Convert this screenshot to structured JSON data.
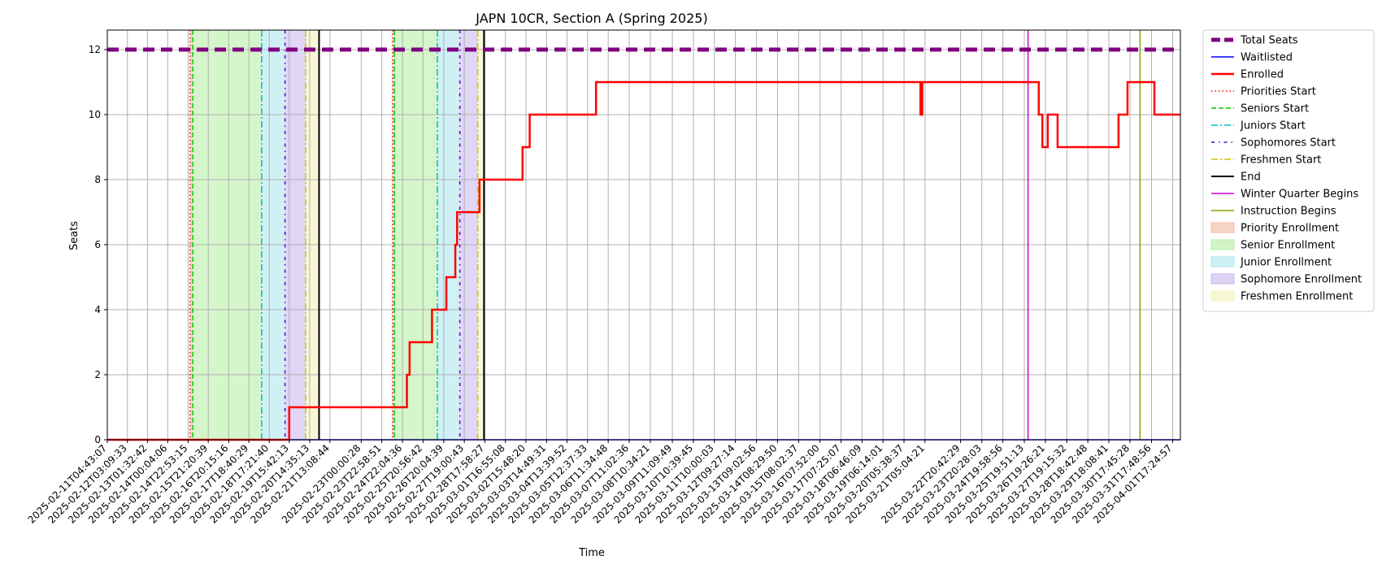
{
  "chart_data": {
    "type": "line",
    "title": "JAPN 10CR, Section A (Spring 2025)",
    "xlabel": "Time",
    "ylabel": "Seats",
    "ylim": [
      0,
      12.6
    ],
    "yticks": [
      0,
      2,
      4,
      6,
      8,
      10,
      12
    ],
    "xlim": [
      "2025-02-11T04:43:07",
      "2025-04-02T02:00:00"
    ],
    "grid": true,
    "legend_position": "outside-right",
    "xtick_labels": [
      "2025-02-11T04:43:07",
      "2025-02-12T03:09:33",
      "2025-02-13T01:32:42",
      "2025-02-14T00:04:06",
      "2025-02-14T22:53:15",
      "2025-02-15T21:20:39",
      "2025-02-16T20:15:16",
      "2025-02-17T18:40:29",
      "2025-02-18T17:21:40",
      "2025-02-19T15:42:13",
      "2025-02-20T14:35:13",
      "2025-02-21T13:08:44",
      "2025-02-23T00:00:28",
      "2025-02-23T22:58:51",
      "2025-02-24T22:04:36",
      "2025-02-25T20:56:42",
      "2025-02-26T20:04:39",
      "2025-02-27T19:00:43",
      "2025-02-28T17:58:27",
      "2025-03-01T16:55:08",
      "2025-03-02T15:48:20",
      "2025-03-03T14:49:31",
      "2025-03-04T13:39:52",
      "2025-03-05T12:37:33",
      "2025-03-06T11:34:48",
      "2025-03-07T11:02:36",
      "2025-03-08T10:34:21",
      "2025-03-09T11:09:49",
      "2025-03-10T10:39:45",
      "2025-03-11T10:00:03",
      "2025-03-12T09:27:14",
      "2025-03-13T09:02:56",
      "2025-03-14T08:29:50",
      "2025-03-15T08:02:37",
      "2025-03-16T07:52:00",
      "2025-03-17T07:25:07",
      "2025-03-18T06:46:09",
      "2025-03-19T06:14:01",
      "2025-03-20T05:38:37",
      "2025-03-21T05:04:21",
      "2025-03-22T20:42:29",
      "2025-03-23T20:28:03",
      "2025-03-24T19:58:56",
      "2025-03-25T19:51:13",
      "2025-03-26T19:26:21",
      "2025-03-27T19:15:32",
      "2025-03-28T18:42:48",
      "2025-03-29T18:08:41",
      "2025-03-30T17:45:28",
      "2025-03-31T17:48:56",
      "2025-04-01T17:24:57"
    ],
    "series": [
      {
        "name": "Total Seats",
        "color": "#800080",
        "style": "dashed-thick",
        "x": [
          "2025-02-11T04:43:07",
          "2025-04-02T02:00:00"
        ],
        "y": [
          12,
          12
        ]
      },
      {
        "name": "Waitlisted",
        "color": "#0000ff",
        "style": "solid",
        "x": [
          "2025-02-11T04:43:07",
          "2025-04-02T02:00:00"
        ],
        "y": [
          0,
          0
        ]
      },
      {
        "name": "Enrolled",
        "color": "#ff0000",
        "style": "step",
        "x": [
          "2025-02-11T04:43:07",
          "2025-02-19T15:42:13",
          "2025-02-25T03:00:00",
          "2025-02-25T06:00:00",
          "2025-02-26T07:00:00",
          "2025-02-26T23:00:00",
          "2025-02-27T09:00:00",
          "2025-02-27T11:00:00",
          "2025-02-28T12:00:00",
          "2025-03-02T12:00:00",
          "2025-03-02T20:00:00",
          "2025-03-05T22:00:00",
          "2025-03-21T00:00:00",
          "2025-03-21T02:00:00",
          "2025-03-26T12:00:00",
          "2025-03-26T16:00:00",
          "2025-03-26T22:00:00",
          "2025-03-27T09:00:00",
          "2025-03-30T05:00:00",
          "2025-03-30T15:00:00",
          "2025-03-31T21:00:00",
          "2025-04-02T02:00:00"
        ],
        "y": [
          0,
          1,
          2,
          3,
          4,
          5,
          6,
          7,
          8,
          9,
          10,
          11,
          10,
          11,
          10,
          9,
          10,
          9,
          10,
          11,
          10,
          10
        ]
      }
    ],
    "markers": [
      {
        "name": "Priorities Start",
        "color": "#ff0000",
        "style": "dotted",
        "x": "2025-02-15T01:00:00"
      },
      {
        "name": "Seniors Start",
        "color": "#00cc00",
        "style": "dashed",
        "x": "2025-02-15T04:00:00"
      },
      {
        "name": "Juniors Start",
        "color": "#00bfbf",
        "style": "dashdot",
        "x": "2025-02-18T09:00:00"
      },
      {
        "name": "Sophomores Start",
        "color": "#5500cc",
        "style": "dashdot2",
        "x": "2025-02-19T11:00:00"
      },
      {
        "name": "Freshmen Start",
        "color": "#d4c000",
        "style": "dashdot",
        "x": "2025-02-20T10:00:00"
      },
      {
        "name": "End",
        "color": "#000000",
        "style": "solid",
        "x": "2025-02-21T01:00:00"
      },
      {
        "name": "Priorities Start",
        "color": "#ff0000",
        "style": "dotted",
        "x": "2025-02-24T11:00:00"
      },
      {
        "name": "Seniors Start",
        "color": "#00cc00",
        "style": "dashed",
        "x": "2025-02-24T13:00:00"
      },
      {
        "name": "Juniors Start",
        "color": "#00bfbf",
        "style": "dashdot",
        "x": "2025-02-26T13:00:00"
      },
      {
        "name": "Sophomores Start",
        "color": "#5500cc",
        "style": "dashdot2",
        "x": "2025-02-27T14:00:00"
      },
      {
        "name": "Freshmen Start",
        "color": "#d4c000",
        "style": "dashdot",
        "x": "2025-02-28T10:00:00"
      },
      {
        "name": "End",
        "color": "#000000",
        "style": "solid",
        "x": "2025-02-28T17:00:00"
      },
      {
        "name": "Winter Quarter Begins",
        "color": "#cc00cc",
        "style": "solid",
        "x": "2025-03-26T00:00:00"
      },
      {
        "name": "Instruction Begins",
        "color": "#7fa600",
        "style": "solid",
        "x": "2025-03-31T05:00:00"
      }
    ],
    "spans": [
      {
        "name": "Priority Enrollment",
        "color": "#f4b9a0",
        "from": "2025-02-15T01:00:00",
        "to": "2025-02-15T04:00:00"
      },
      {
        "name": "Senior Enrollment",
        "color": "#b2eea0",
        "from": "2025-02-15T04:00:00",
        "to": "2025-02-18T09:00:00"
      },
      {
        "name": "Junior Enrollment",
        "color": "#a8e6ee",
        "from": "2025-02-18T09:00:00",
        "to": "2025-02-19T11:00:00"
      },
      {
        "name": "Sophomore Enrollment",
        "color": "#c8b5ee",
        "from": "2025-02-19T11:00:00",
        "to": "2025-02-20T10:00:00"
      },
      {
        "name": "Freshmen Enrollment",
        "color": "#f4f1b8",
        "from": "2025-02-20T10:00:00",
        "to": "2025-02-21T01:00:00"
      },
      {
        "name": "Priority Enrollment",
        "color": "#f4b9a0",
        "from": "2025-02-24T11:00:00",
        "to": "2025-02-24T13:00:00"
      },
      {
        "name": "Senior Enrollment",
        "color": "#b2eea0",
        "from": "2025-02-24T13:00:00",
        "to": "2025-02-26T13:00:00"
      },
      {
        "name": "Junior Enrollment",
        "color": "#a8e6ee",
        "from": "2025-02-26T13:00:00",
        "to": "2025-02-27T14:00:00"
      },
      {
        "name": "Sophomore Enrollment",
        "color": "#c8b5ee",
        "from": "2025-02-27T14:00:00",
        "to": "2025-02-28T10:00:00"
      },
      {
        "name": "Freshmen Enrollment",
        "color": "#f4f1b8",
        "from": "2025-02-28T10:00:00",
        "to": "2025-02-28T17:00:00"
      }
    ],
    "legend": [
      {
        "label": "Total Seats",
        "kind": "line",
        "color": "#800080",
        "style": "dashed-thick"
      },
      {
        "label": "Waitlisted",
        "kind": "line",
        "color": "#0000ff",
        "style": "solid"
      },
      {
        "label": "Enrolled",
        "kind": "line",
        "color": "#ff0000",
        "style": "solid-bold"
      },
      {
        "label": "Priorities Start",
        "kind": "line",
        "color": "#ff0000",
        "style": "dotted"
      },
      {
        "label": "Seniors Start",
        "kind": "line",
        "color": "#00cc00",
        "style": "dashed"
      },
      {
        "label": "Juniors Start",
        "kind": "line",
        "color": "#00bfbf",
        "style": "dashdot"
      },
      {
        "label": "Sophomores Start",
        "kind": "line",
        "color": "#5500cc",
        "style": "dashdot2"
      },
      {
        "label": "Freshmen Start",
        "kind": "line",
        "color": "#d4c000",
        "style": "dashdot"
      },
      {
        "label": "End",
        "kind": "line",
        "color": "#000000",
        "style": "solid"
      },
      {
        "label": "Winter Quarter Begins",
        "kind": "line",
        "color": "#cc00cc",
        "style": "solid"
      },
      {
        "label": "Instruction Begins",
        "kind": "line",
        "color": "#7fa600",
        "style": "solid"
      },
      {
        "label": "Priority Enrollment",
        "kind": "patch",
        "color": "#f4b9a0"
      },
      {
        "label": "Senior Enrollment",
        "kind": "patch",
        "color": "#b2eea0"
      },
      {
        "label": "Junior Enrollment",
        "kind": "patch",
        "color": "#a8e6ee"
      },
      {
        "label": "Sophomore Enrollment",
        "kind": "patch",
        "color": "#c8b5ee"
      },
      {
        "label": "Freshmen Enrollment",
        "kind": "patch",
        "color": "#f4f1b8"
      }
    ]
  }
}
